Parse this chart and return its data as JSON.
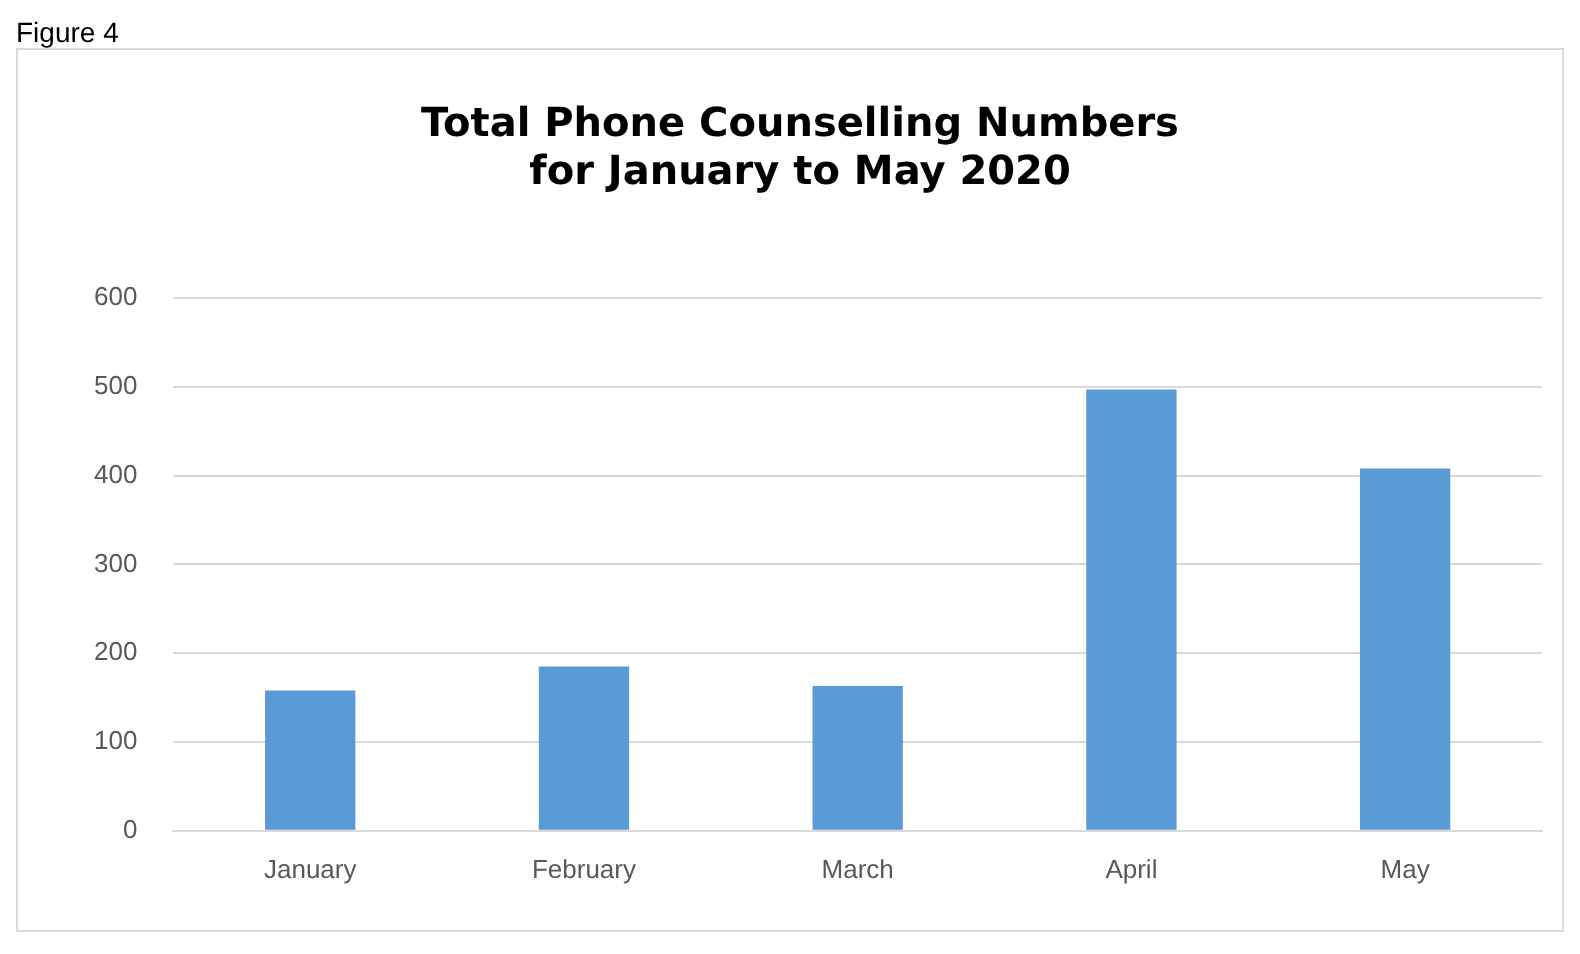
{
  "chart_data": {
    "type": "bar",
    "title": [
      "Total Phone Counselling Numbers",
      "for January to May 2020"
    ],
    "annotations": [
      "Figure 4"
    ],
    "categories": [
      "January",
      "February",
      "March",
      "April",
      "May"
    ],
    "values": [
      158,
      185,
      163,
      497,
      408
    ],
    "color": "#5b9bd5",
    "ylim": [
      0,
      600
    ],
    "yticks": [
      0,
      100,
      200,
      300,
      400,
      500,
      600
    ],
    "grid": "y",
    "legend": false
  }
}
